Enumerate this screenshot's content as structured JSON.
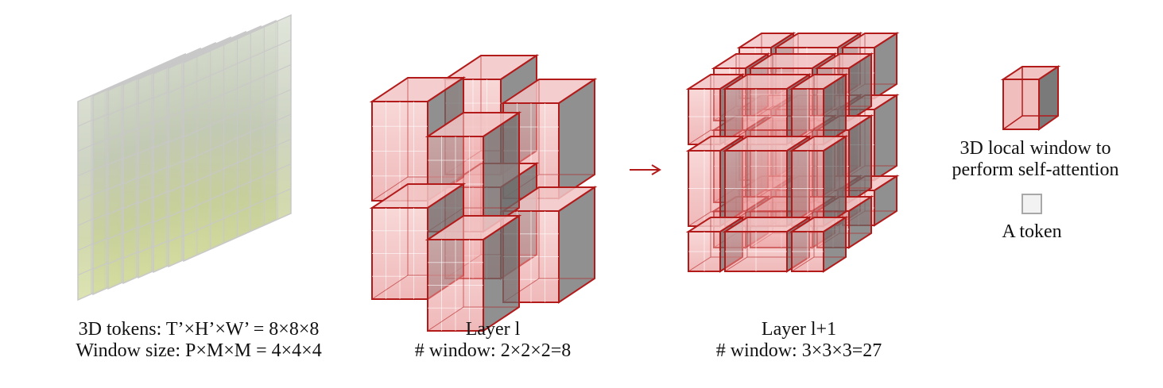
{
  "captions": {
    "input_line1": "3D tokens: T’×H’×W’ = 8×8×8",
    "input_line2": "Window size: P×M×M = 4×4×4",
    "layer_l_line1": "Layer l",
    "layer_l_line2": "# window: 2×2×2=8",
    "layer_l1_line1": "Layer l+1",
    "layer_l1_line2": "# window: 3×3×3=27"
  },
  "legend": {
    "window_line1": "3D local window to",
    "window_line2": "perform self-attention",
    "token_label": "A token"
  },
  "colors": {
    "window_edge": "#b31b1b",
    "window_fill": "#e8a0a0",
    "window_side": "#6b6b6b",
    "token_grid": "#c8c8c8",
    "arrow": "#b31b1b"
  },
  "icons": {
    "arrow": "right-arrow-icon",
    "window_legend": "cube-window-icon",
    "token_legend": "token-square-icon"
  }
}
